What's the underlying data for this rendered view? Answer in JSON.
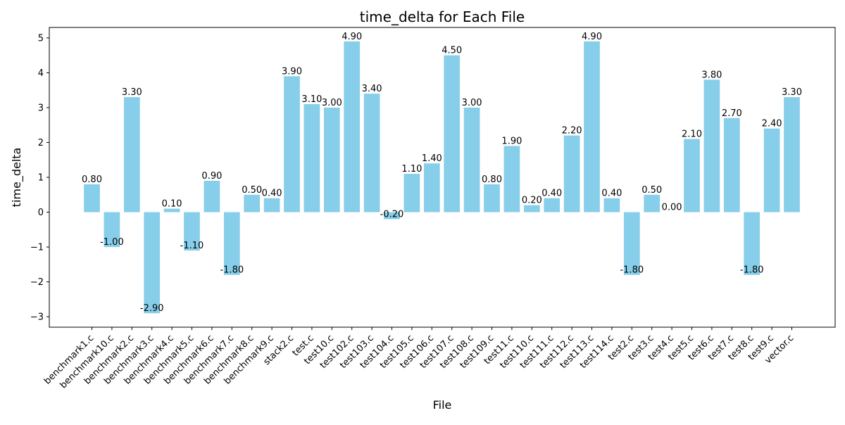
{
  "chart_data": {
    "type": "bar",
    "title": "time_delta for Each File",
    "xlabel": "File",
    "ylabel": "time_delta",
    "categories": [
      "benchmark1.c",
      "benchmark10.c",
      "benchmark2.c",
      "benchmark3.c",
      "benchmark4.c",
      "benchmark5.c",
      "benchmark6.c",
      "benchmark7.c",
      "benchmark8.c",
      "benchmark9.c",
      "stack2.c",
      "test.c",
      "test10.c",
      "test102.c",
      "test103.c",
      "test104.c",
      "test105.c",
      "test106.c",
      "test107.c",
      "test108.c",
      "test109.c",
      "test11.c",
      "test110.c",
      "test111.c",
      "test112.c",
      "test113.c",
      "test114.c",
      "test2.c",
      "test3.c",
      "test4.c",
      "test5.c",
      "test6.c",
      "test7.c",
      "test8.c",
      "test9.c",
      "vector.c"
    ],
    "values": [
      0.8,
      -1.0,
      3.3,
      -2.9,
      0.1,
      -1.1,
      0.9,
      -1.8,
      0.5,
      0.4,
      3.9,
      3.1,
      3.0,
      4.9,
      3.4,
      -0.2,
      1.1,
      1.4,
      4.5,
      3.0,
      0.8,
      1.9,
      0.2,
      0.4,
      2.2,
      4.9,
      0.4,
      -1.8,
      0.5,
      0.0,
      2.1,
      3.8,
      2.7,
      -1.8,
      2.4,
      3.3
    ],
    "data_labels": [
      "0.80",
      "-1.00",
      "3.30",
      "-2.90",
      "0.10",
      "-1.10",
      "0.90",
      "-1.80",
      "0.50",
      "0.40",
      "3.90",
      "3.10",
      "3.00",
      "4.90",
      "3.40",
      "-0.20",
      "1.10",
      "1.40",
      "4.50",
      "3.00",
      "0.80",
      "1.90",
      "0.20",
      "0.40",
      "2.20",
      "4.90",
      "0.40",
      "-1.80",
      "0.50",
      "0.00",
      "2.10",
      "3.80",
      "2.70",
      "-1.80",
      "2.40",
      "3.30"
    ],
    "ylim": [
      -3.3,
      5.3
    ],
    "yticks": [
      -3,
      -2,
      -1,
      0,
      1,
      2,
      3,
      4,
      5
    ],
    "ytick_labels": [
      "−3",
      "−2",
      "−1",
      "0",
      "1",
      "2",
      "3",
      "4",
      "5"
    ],
    "grid": false,
    "bar_color": "#87CEEB"
  }
}
